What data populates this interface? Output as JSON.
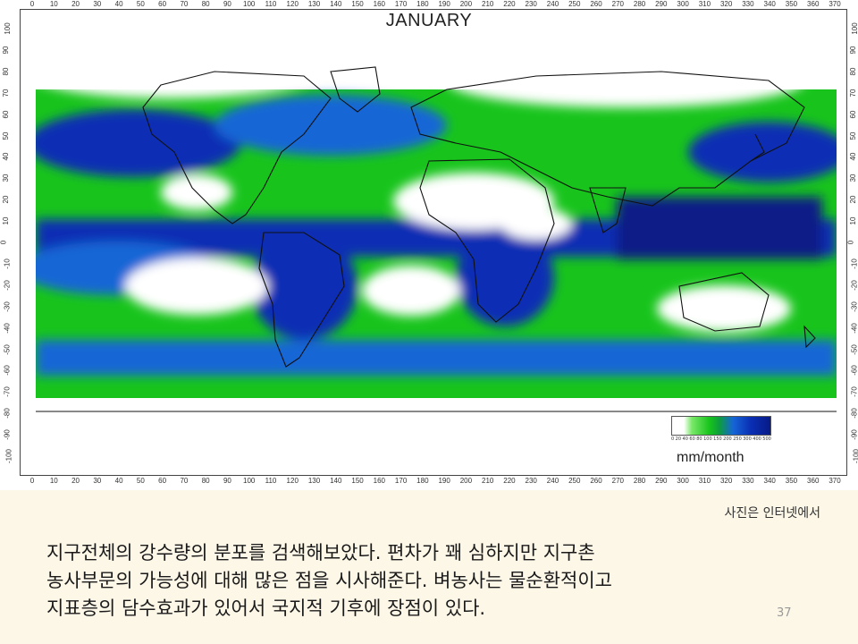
{
  "map": {
    "title": "JANUARY",
    "unit": "mm/month",
    "x_ticks": [
      "0",
      "10",
      "20",
      "30",
      "40",
      "50",
      "60",
      "70",
      "80",
      "90",
      "100",
      "110",
      "120",
      "130",
      "140",
      "150",
      "160",
      "170",
      "180",
      "190",
      "200",
      "210",
      "220",
      "230",
      "240",
      "250",
      "260",
      "270",
      "280",
      "290",
      "300",
      "310",
      "320",
      "330",
      "340",
      "350",
      "360",
      "370"
    ],
    "y_ticks": [
      "100",
      "90",
      "80",
      "70",
      "60",
      "50",
      "40",
      "30",
      "20",
      "10",
      "0",
      "-10",
      "-20",
      "-30",
      "-40",
      "-50",
      "-60",
      "-70",
      "-80",
      "-90",
      "-100"
    ],
    "legend_ticks": [
      "0",
      "20",
      "40",
      "60",
      "80",
      "100",
      "150",
      "200",
      "250",
      "300",
      "400",
      "500"
    ],
    "colors": {
      "dry": "#ffffff",
      "light": "#7ae86a",
      "moderate": "#18c41c",
      "wet": "#1566d6",
      "very_wet": "#0a2fb4",
      "extreme": "#071a86",
      "coastline": "#111111"
    }
  },
  "caption": {
    "credit": "사진은 인터넷에서",
    "lines": [
      "지구전체의 강수량의 분포를 검색해보았다. 편차가 꽤 심하지만 지구촌",
      "농사부문의 가능성에 대해 많은 점을 시사해준다. 벼농사는 물순환적이고",
      "지표층의 담수효과가 있어서 국지적 기후에 장점이 있다."
    ],
    "page_number": "37"
  }
}
